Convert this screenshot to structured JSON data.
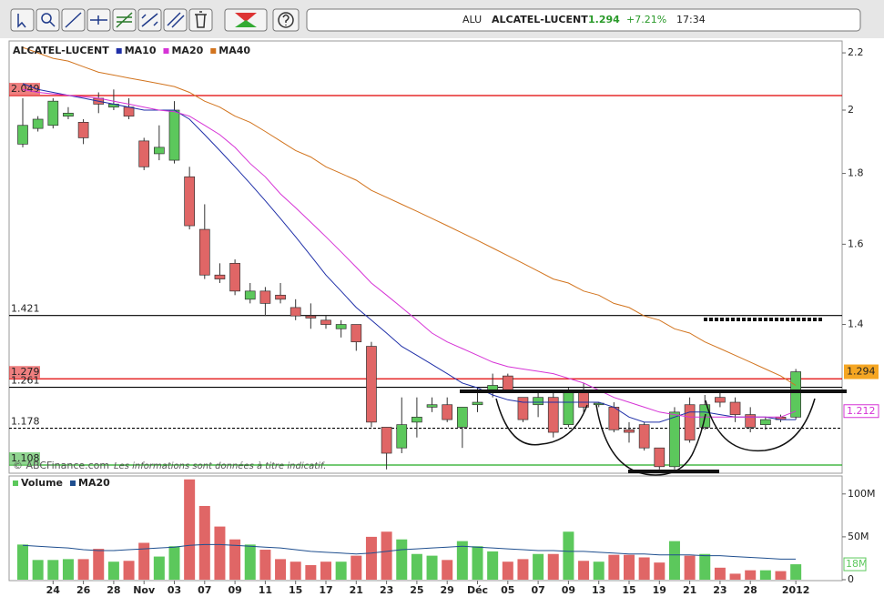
{
  "toolbar": {
    "symbol": "ALU",
    "name": "ALCATEL-LUCENT",
    "last": 1.294,
    "change": "+7.21%",
    "time": "17:34"
  },
  "chart_data": [
    {
      "type": "candlestick",
      "categories": [
        null,
        null,
        "24",
        null,
        "26",
        null,
        "28",
        null,
        "Nov",
        null,
        "03",
        null,
        "07",
        null,
        "09",
        null,
        "11",
        null,
        "15",
        null,
        "17",
        null,
        "21",
        null,
        "23",
        null,
        "25",
        null,
        "29",
        null,
        "Déc",
        null,
        "05",
        null,
        "07",
        null,
        "09",
        null,
        "13",
        null,
        "15",
        null,
        "19",
        null,
        "21",
        null,
        "23",
        null,
        "28",
        null,
        null,
        "2012"
      ],
      "log": true,
      "ylim": [
        1.093,
        2.244
      ],
      "yticks": [
        1.4,
        1.6,
        1.8,
        2,
        2.2
      ],
      "up_color": "#5cc85c",
      "down_color": "#e06666",
      "series": [
        {
          "name": "ALCATEL-LUCENT",
          "type": "candlestick",
          "open": [
            1.89,
            1.94,
            1.95,
            1.98,
            1.96,
            2.04,
            2.01,
            2.01,
            1.9,
            1.86,
            1.84,
            1.79,
            1.64,
            1.52,
            1.55,
            1.46,
            1.48,
            1.47,
            1.44,
            1.42,
            1.41,
            1.39,
            1.4,
            1.35,
            1.18,
            1.14,
            1.19,
            1.22,
            1.225,
            1.18,
            1.225,
            1.255,
            1.285,
            1.24,
            1.225,
            1.24,
            1.185,
            1.25,
            1.225,
            1.22,
            1.175,
            1.185,
            1.14,
            1.105,
            1.225,
            1.18,
            1.24,
            1.23,
            1.205,
            1.185,
            1.2,
            1.2
          ],
          "high": [
            2.04,
            1.98,
            2.04,
            2.01,
            1.97,
            2.06,
            2.07,
            2.04,
            1.91,
            1.95,
            2.03,
            1.82,
            1.71,
            1.55,
            1.56,
            1.5,
            1.49,
            1.5,
            1.46,
            1.45,
            1.42,
            1.41,
            1.4,
            1.36,
            1.18,
            1.24,
            1.24,
            1.24,
            1.24,
            1.22,
            1.26,
            1.29,
            1.29,
            1.24,
            1.25,
            1.25,
            1.26,
            1.27,
            1.23,
            1.23,
            1.19,
            1.19,
            1.14,
            1.22,
            1.24,
            1.245,
            1.25,
            1.24,
            1.22,
            1.2,
            1.205,
            1.3
          ],
          "low": [
            1.88,
            1.93,
            1.94,
            1.97,
            1.89,
            1.99,
            2.0,
            1.97,
            1.81,
            1.84,
            1.83,
            1.64,
            1.51,
            1.5,
            1.47,
            1.45,
            1.42,
            1.45,
            1.41,
            1.39,
            1.39,
            1.37,
            1.34,
            1.18,
            1.1,
            1.13,
            1.16,
            1.21,
            1.19,
            1.14,
            1.21,
            1.24,
            1.25,
            1.19,
            1.2,
            1.16,
            1.18,
            1.21,
            1.22,
            1.17,
            1.15,
            1.135,
            1.1,
            1.1,
            1.15,
            1.175,
            1.22,
            1.19,
            1.17,
            1.175,
            1.19,
            1.195
          ],
          "close": [
            1.95,
            1.97,
            2.03,
            1.99,
            1.91,
            2.02,
            2.02,
            1.98,
            1.82,
            1.88,
            2.0,
            1.65,
            1.52,
            1.51,
            1.48,
            1.48,
            1.45,
            1.46,
            1.42,
            1.415,
            1.4,
            1.4,
            1.36,
            1.19,
            1.13,
            1.185,
            1.2,
            1.225,
            1.195,
            1.22,
            1.23,
            1.265,
            1.255,
            1.195,
            1.24,
            1.17,
            1.25,
            1.22,
            1.228,
            1.175,
            1.17,
            1.14,
            1.105,
            1.21,
            1.155,
            1.225,
            1.23,
            1.205,
            1.18,
            1.195,
            1.195,
            1.294
          ],
          "label_color": "#f5a623"
        },
        {
          "name": "MA10",
          "type": "line",
          "color": "#1f2fa8",
          "values": [
            2.09,
            2.07,
            2.06,
            2.05,
            2.04,
            2.03,
            2.02,
            2.01,
            2.0,
            2.0,
            2.0,
            1.97,
            1.92,
            1.87,
            1.82,
            1.77,
            1.72,
            1.67,
            1.62,
            1.57,
            1.52,
            1.48,
            1.44,
            1.41,
            1.38,
            1.35,
            1.33,
            1.31,
            1.29,
            1.27,
            1.26,
            1.245,
            1.235,
            1.23,
            1.23,
            1.23,
            1.23,
            1.23,
            1.23,
            1.22,
            1.2,
            1.19,
            1.19,
            1.2,
            1.21,
            1.21,
            1.205,
            1.2,
            1.2,
            1.2,
            1.195,
            1.195
          ]
        },
        {
          "name": "MA20",
          "type": "line",
          "color": "#d633d6",
          "values": [
            2.07,
            2.06,
            2.055,
            2.05,
            2.045,
            2.04,
            2.03,
            2.02,
            2.01,
            2.0,
            1.995,
            1.98,
            1.95,
            1.92,
            1.88,
            1.83,
            1.79,
            1.74,
            1.7,
            1.66,
            1.62,
            1.58,
            1.54,
            1.5,
            1.47,
            1.44,
            1.41,
            1.38,
            1.36,
            1.345,
            1.33,
            1.315,
            1.305,
            1.3,
            1.295,
            1.29,
            1.28,
            1.27,
            1.255,
            1.24,
            1.23,
            1.22,
            1.21,
            1.205,
            1.2,
            1.2,
            1.2,
            1.2,
            1.2,
            1.2,
            1.2,
            1.212
          ]
        },
        {
          "name": "MA40",
          "type": "line",
          "color": "#d2741e",
          "values": [
            2.22,
            2.2,
            2.18,
            2.17,
            2.15,
            2.13,
            2.12,
            2.11,
            2.1,
            2.09,
            2.08,
            2.06,
            2.03,
            2.01,
            1.98,
            1.96,
            1.93,
            1.9,
            1.87,
            1.85,
            1.82,
            1.8,
            1.78,
            1.75,
            1.73,
            1.71,
            1.69,
            1.67,
            1.65,
            1.63,
            1.61,
            1.59,
            1.57,
            1.55,
            1.53,
            1.51,
            1.5,
            1.48,
            1.47,
            1.45,
            1.44,
            1.42,
            1.41,
            1.39,
            1.38,
            1.36,
            1.345,
            1.33,
            1.315,
            1.3,
            1.285,
            1.265
          ]
        }
      ],
      "levels": [
        {
          "value": 2.049,
          "color": "#e00000",
          "boxed": true
        },
        {
          "value": 1.421,
          "color": "#000000"
        },
        {
          "value": 1.279,
          "color": "#e00000",
          "boxed": true
        },
        {
          "value": 1.261,
          "color": "#000000"
        },
        {
          "value": 1.178,
          "color": "#000000",
          "dashed": true
        },
        {
          "value": 1.108,
          "color": "#22aa22",
          "boxed": true
        }
      ],
      "watermark": "© ABCFinance.com",
      "disclaimer": "Les informations sont données à titre indicatif."
    },
    {
      "type": "bar",
      "ylim": [
        0,
        121
      ],
      "yticks": [
        0,
        {
          "value": 50,
          "label": "50M"
        },
        {
          "value": 100,
          "label": "100M"
        }
      ],
      "series": [
        {
          "name": "Volume",
          "type": "bar",
          "color": "#5cc85c",
          "values": [
            41,
            23,
            23,
            24,
            24,
            36,
            21,
            22,
            43,
            27,
            39,
            117,
            86,
            62,
            47,
            41,
            35,
            24,
            21,
            17,
            21,
            21,
            28,
            50,
            56,
            47,
            30,
            28,
            23,
            45,
            39,
            33,
            21,
            24,
            30,
            30,
            56,
            22,
            21,
            29,
            29,
            26,
            20,
            45,
            28,
            30,
            14,
            7,
            11,
            11,
            10,
            18
          ],
          "value_labels": [
            null,
            null,
            null,
            null,
            null,
            null,
            null,
            null,
            null,
            null,
            null,
            null,
            null,
            null,
            null,
            null,
            null,
            null,
            null,
            null,
            null,
            null,
            null,
            null,
            null,
            null,
            null,
            null,
            null,
            null,
            null,
            null,
            null,
            null,
            null,
            null,
            null,
            null,
            null,
            null,
            null,
            null,
            null,
            null,
            null,
            null,
            null,
            null,
            null,
            null,
            null,
            "18M"
          ]
        },
        {
          "name": "MA20",
          "type": "line",
          "color": "#1f4f8f",
          "values": [
            40,
            39,
            38,
            37,
            35,
            34,
            34,
            35,
            36,
            37,
            38,
            40,
            41,
            41,
            40,
            39,
            38,
            37,
            35,
            33,
            32,
            31,
            30,
            31,
            33,
            35,
            36,
            37,
            38,
            39,
            38,
            37,
            36,
            35,
            34,
            34,
            33,
            33,
            32,
            31,
            30,
            30,
            29,
            29,
            29,
            28,
            28,
            27,
            26,
            25,
            24,
            24
          ]
        }
      ]
    }
  ]
}
